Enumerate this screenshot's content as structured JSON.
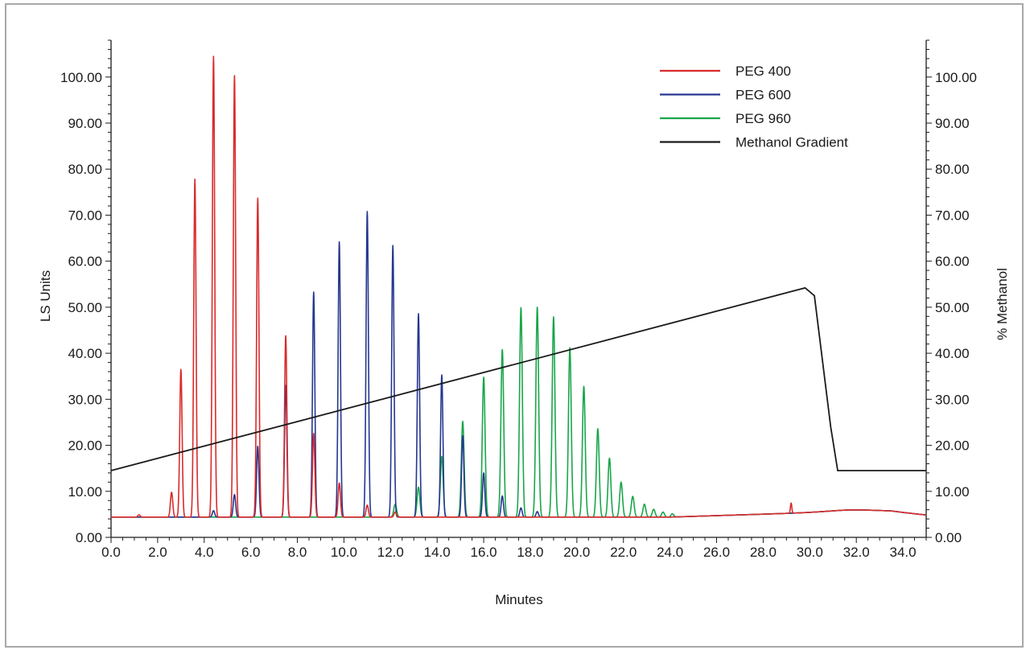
{
  "chart_data": {
    "type": "line",
    "xlabel": "Minutes",
    "ylabel": "LS Units",
    "y2label": "% Methanol",
    "xlim": [
      0.0,
      35.0
    ],
    "ylim": [
      0.0,
      108.0
    ],
    "y2lim": [
      0.0,
      108.0
    ],
    "x_ticks": [
      "0.0",
      "2.0",
      "4.0",
      "6.0",
      "8.0",
      "10.0",
      "12.0",
      "14.0",
      "16.0",
      "18.0",
      "20.0",
      "22.0",
      "24.0",
      "26.0",
      "28.0",
      "30.0",
      "32.0",
      "34.0"
    ],
    "y_ticks": [
      "0.00",
      "10.00",
      "20.00",
      "30.00",
      "40.00",
      "50.00",
      "60.00",
      "70.00",
      "80.00",
      "90.00",
      "100.00"
    ],
    "y2_ticks": [
      "0.00",
      "10.00",
      "20.00",
      "30.00",
      "40.00",
      "50.00",
      "60.00",
      "70.00",
      "80.00",
      "90.00",
      "100.00"
    ],
    "baseline": 4.4,
    "legend_position": "top-right",
    "series": [
      {
        "name": "PEG 400",
        "color": "#d92b2b",
        "peaks": [
          {
            "x": 1.2,
            "y": 4.9,
            "w": 0.05
          },
          {
            "x": 2.6,
            "y": 9.8,
            "w": 0.05
          },
          {
            "x": 3.0,
            "y": 36.5,
            "w": 0.05
          },
          {
            "x": 3.6,
            "y": 77.8,
            "w": 0.05
          },
          {
            "x": 4.4,
            "y": 104.5,
            "w": 0.05
          },
          {
            "x": 5.3,
            "y": 100.3,
            "w": 0.05
          },
          {
            "x": 6.3,
            "y": 73.7,
            "w": 0.05
          },
          {
            "x": 7.5,
            "y": 43.8,
            "w": 0.05
          },
          {
            "x": 8.7,
            "y": 22.6,
            "w": 0.05
          },
          {
            "x": 9.8,
            "y": 11.8,
            "w": 0.05
          },
          {
            "x": 11.0,
            "y": 7.0,
            "w": 0.05
          },
          {
            "x": 12.2,
            "y": 5.5,
            "w": 0.05
          },
          {
            "x": 29.2,
            "y": 6.6,
            "w": 0.03
          }
        ]
      },
      {
        "name": "PEG 600",
        "color": "#26378f",
        "peaks": [
          {
            "x": 4.4,
            "y": 5.8,
            "w": 0.05
          },
          {
            "x": 5.3,
            "y": 9.3,
            "w": 0.05
          },
          {
            "x": 6.3,
            "y": 19.8,
            "w": 0.05
          },
          {
            "x": 7.5,
            "y": 33.0,
            "w": 0.05
          },
          {
            "x": 8.7,
            "y": 53.3,
            "w": 0.05
          },
          {
            "x": 9.8,
            "y": 64.2,
            "w": 0.05
          },
          {
            "x": 11.0,
            "y": 70.8,
            "w": 0.05
          },
          {
            "x": 12.1,
            "y": 63.4,
            "w": 0.05
          },
          {
            "x": 13.2,
            "y": 48.6,
            "w": 0.05
          },
          {
            "x": 14.2,
            "y": 35.3,
            "w": 0.05
          },
          {
            "x": 15.1,
            "y": 22.1,
            "w": 0.05
          },
          {
            "x": 16.0,
            "y": 14.0,
            "w": 0.05
          },
          {
            "x": 16.8,
            "y": 9.0,
            "w": 0.05
          },
          {
            "x": 17.6,
            "y": 6.4,
            "w": 0.05
          },
          {
            "x": 18.3,
            "y": 5.6,
            "w": 0.05
          }
        ]
      },
      {
        "name": "PEG 960",
        "color": "#1aa64a",
        "peaks": [
          {
            "x": 12.2,
            "y": 7.2,
            "w": 0.06
          },
          {
            "x": 13.2,
            "y": 10.9,
            "w": 0.06
          },
          {
            "x": 14.2,
            "y": 17.6,
            "w": 0.06
          },
          {
            "x": 15.1,
            "y": 25.2,
            "w": 0.06
          },
          {
            "x": 16.0,
            "y": 34.8,
            "w": 0.06
          },
          {
            "x": 16.8,
            "y": 40.8,
            "w": 0.06
          },
          {
            "x": 17.6,
            "y": 49.9,
            "w": 0.06
          },
          {
            "x": 18.3,
            "y": 50.0,
            "w": 0.06
          },
          {
            "x": 19.0,
            "y": 47.9,
            "w": 0.06
          },
          {
            "x": 19.7,
            "y": 41.2,
            "w": 0.06
          },
          {
            "x": 20.3,
            "y": 32.8,
            "w": 0.06
          },
          {
            "x": 20.9,
            "y": 23.6,
            "w": 0.06
          },
          {
            "x": 21.4,
            "y": 17.2,
            "w": 0.06
          },
          {
            "x": 21.9,
            "y": 12.0,
            "w": 0.06
          },
          {
            "x": 22.4,
            "y": 8.9,
            "w": 0.06
          },
          {
            "x": 22.9,
            "y": 7.2,
            "w": 0.06
          },
          {
            "x": 23.3,
            "y": 6.1,
            "w": 0.06
          },
          {
            "x": 23.7,
            "y": 5.5,
            "w": 0.06
          },
          {
            "x": 24.1,
            "y": 5.1,
            "w": 0.06
          }
        ]
      },
      {
        "name": "Methanol Gradient",
        "color": "#1a1a1a",
        "x": [
          0.0,
          29.8,
          30.2,
          30.9,
          31.2,
          35.0
        ],
        "y": [
          14.5,
          54.2,
          52.5,
          24.0,
          14.5,
          14.5
        ]
      }
    ]
  }
}
